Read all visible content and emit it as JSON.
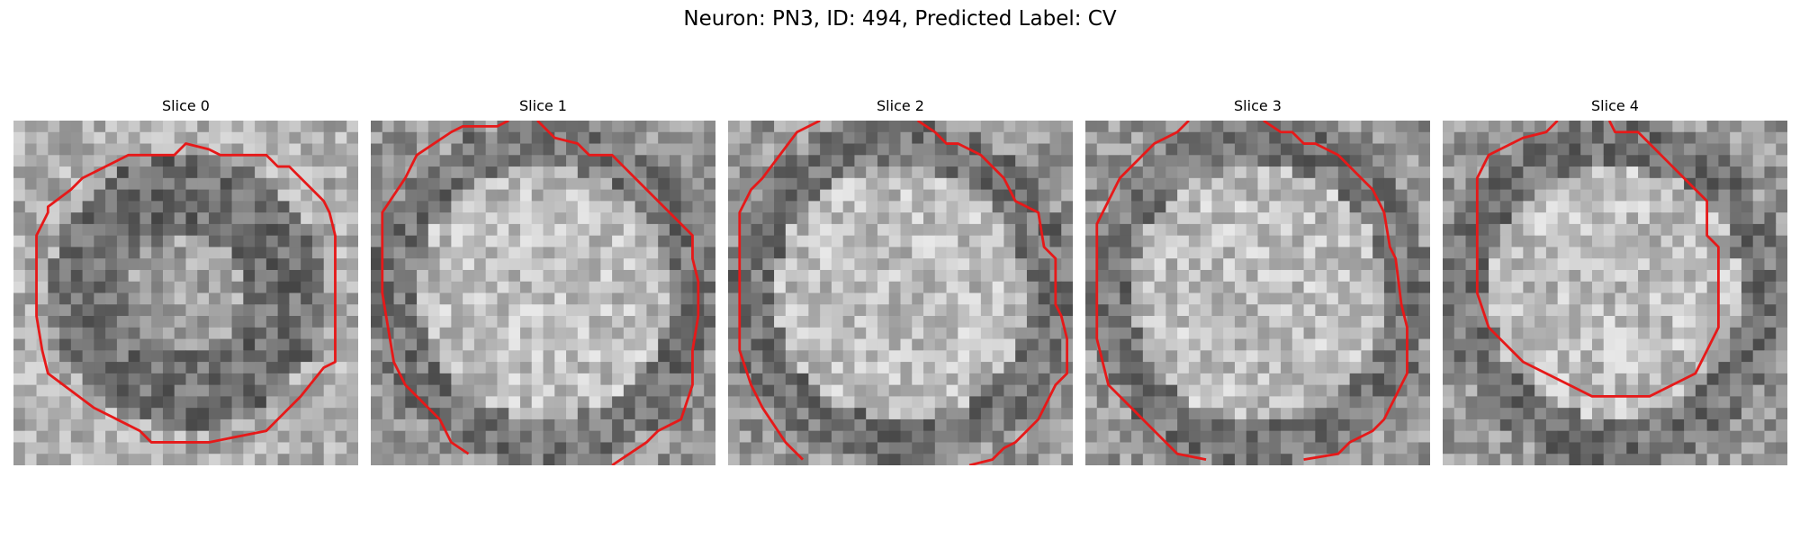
{
  "figure": {
    "title": "Neuron: PN3, ID: 494, Predicted Label: CV",
    "contour_color": "#e61919",
    "colormap": "grayscale",
    "grid_size": 30
  },
  "slices": [
    {
      "title": "Slice 0",
      "seed": 11,
      "contour": [
        [
          15,
          2
        ],
        [
          17,
          2.5
        ],
        [
          18,
          3
        ],
        [
          22,
          3
        ],
        [
          23,
          4
        ],
        [
          24,
          4
        ],
        [
          27,
          7
        ],
        [
          27.5,
          8
        ],
        [
          28,
          10
        ],
        [
          28,
          21
        ],
        [
          27,
          21.5
        ],
        [
          25,
          24
        ],
        [
          23,
          26
        ],
        [
          22,
          27
        ],
        [
          17,
          28
        ],
        [
          12,
          28
        ],
        [
          11,
          27
        ],
        [
          9,
          26
        ],
        [
          7,
          25
        ],
        [
          3,
          22
        ],
        [
          2.5,
          20
        ],
        [
          2,
          17
        ],
        [
          2,
          10
        ],
        [
          3,
          8
        ],
        [
          3,
          7.5
        ],
        [
          5,
          6
        ],
        [
          6,
          5
        ],
        [
          10,
          3
        ],
        [
          14,
          3
        ]
      ],
      "closed": true,
      "mode": "dark-ring"
    },
    {
      "title": "Slice 1",
      "seed": 23,
      "contour": [
        [
          [
            14.5,
            0
          ],
          [
            16,
            1.5
          ],
          [
            18,
            2
          ],
          [
            19,
            3
          ],
          [
            21,
            3
          ],
          [
            22,
            4
          ],
          [
            23,
            5
          ],
          [
            25,
            7
          ],
          [
            27,
            9
          ],
          [
            28,
            10
          ],
          [
            28,
            12
          ],
          [
            28.5,
            14
          ],
          [
            28.5,
            17
          ],
          [
            28,
            20
          ],
          [
            28,
            23
          ],
          [
            27,
            26
          ],
          [
            25,
            27
          ],
          [
            24,
            28
          ],
          [
            21,
            30
          ]
        ],
        [
          [
            8.5,
            29
          ],
          [
            7,
            28
          ],
          [
            6,
            26
          ],
          [
            4,
            24
          ],
          [
            3,
            23
          ],
          [
            2,
            21
          ],
          [
            1.5,
            18
          ],
          [
            1,
            15
          ],
          [
            1,
            12
          ],
          [
            1,
            8
          ],
          [
            3,
            5
          ],
          [
            4,
            3
          ],
          [
            7,
            1
          ],
          [
            8,
            0.5
          ],
          [
            11,
            0.5
          ],
          [
            12,
            0
          ]
        ]
      ],
      "closed": false,
      "mode": "bright-core"
    },
    {
      "title": "Slice 2",
      "seed": 37,
      "contour": [
        [
          [
            16.5,
            0
          ],
          [
            18,
            1
          ],
          [
            19,
            2
          ],
          [
            20,
            2
          ],
          [
            22,
            3
          ],
          [
            24,
            5
          ],
          [
            25,
            7
          ],
          [
            27,
            8
          ],
          [
            27.5,
            11
          ],
          [
            28.5,
            12
          ],
          [
            28.5,
            16
          ],
          [
            29,
            17
          ],
          [
            29.5,
            19
          ],
          [
            29.5,
            22
          ],
          [
            28.5,
            23
          ],
          [
            28,
            24
          ],
          [
            27,
            26
          ],
          [
            26,
            27
          ],
          [
            25,
            28
          ],
          [
            24,
            28.5
          ],
          [
            23,
            29.5
          ],
          [
            21,
            30
          ]
        ],
        [
          [
            6.5,
            29.5
          ],
          [
            5,
            28
          ],
          [
            3,
            25
          ],
          [
            2,
            23
          ],
          [
            1,
            20
          ],
          [
            1,
            16
          ],
          [
            1,
            11
          ],
          [
            1,
            8
          ],
          [
            2,
            6
          ],
          [
            3,
            5
          ],
          [
            6,
            1
          ],
          [
            8,
            0
          ]
        ]
      ],
      "closed": false,
      "mode": "bright-core"
    },
    {
      "title": "Slice 3",
      "seed": 51,
      "contour": [
        [
          [
            15.5,
            0
          ],
          [
            17,
            1
          ],
          [
            18,
            1
          ],
          [
            19,
            2
          ],
          [
            20,
            2
          ],
          [
            22,
            3
          ],
          [
            24,
            5
          ],
          [
            25,
            6
          ],
          [
            26,
            8
          ],
          [
            26.5,
            11
          ],
          [
            27,
            12
          ],
          [
            27.5,
            16
          ],
          [
            28,
            18
          ],
          [
            28,
            22
          ],
          [
            27,
            24
          ],
          [
            26,
            26
          ],
          [
            25,
            27
          ],
          [
            23,
            28
          ],
          [
            22,
            29
          ],
          [
            19,
            29.5
          ]
        ],
        [
          [
            10.5,
            29.5
          ],
          [
            8,
            29
          ],
          [
            6,
            27
          ],
          [
            4,
            25
          ],
          [
            2,
            23
          ],
          [
            1,
            19
          ],
          [
            1,
            15
          ],
          [
            1,
            9
          ],
          [
            2,
            7
          ],
          [
            3,
            5
          ],
          [
            5,
            3
          ],
          [
            6,
            2
          ],
          [
            8,
            1
          ],
          [
            9,
            0
          ]
        ]
      ],
      "closed": false,
      "mode": "bright-core"
    },
    {
      "title": "Slice 4",
      "seed": 67,
      "contour": [
        [
          [
            14.5,
            0
          ],
          [
            15,
            1
          ],
          [
            17,
            1
          ],
          [
            18,
            2
          ],
          [
            20,
            4
          ],
          [
            21,
            5
          ],
          [
            22,
            6
          ],
          [
            23,
            7
          ],
          [
            23,
            10
          ],
          [
            24,
            11
          ],
          [
            24,
            18
          ],
          [
            23,
            20
          ],
          [
            22,
            22
          ],
          [
            20,
            23
          ],
          [
            18,
            24
          ],
          [
            13,
            24
          ],
          [
            11,
            23
          ],
          [
            9,
            22
          ],
          [
            7,
            21
          ],
          [
            5,
            19
          ],
          [
            4,
            18
          ],
          [
            3,
            15
          ],
          [
            3,
            11
          ],
          [
            3,
            5
          ],
          [
            4,
            3
          ],
          [
            6,
            2
          ],
          [
            7,
            1.5
          ],
          [
            9,
            1
          ],
          [
            10,
            0
          ]
        ]
      ],
      "closed": false,
      "mode": "bright-core"
    }
  ]
}
